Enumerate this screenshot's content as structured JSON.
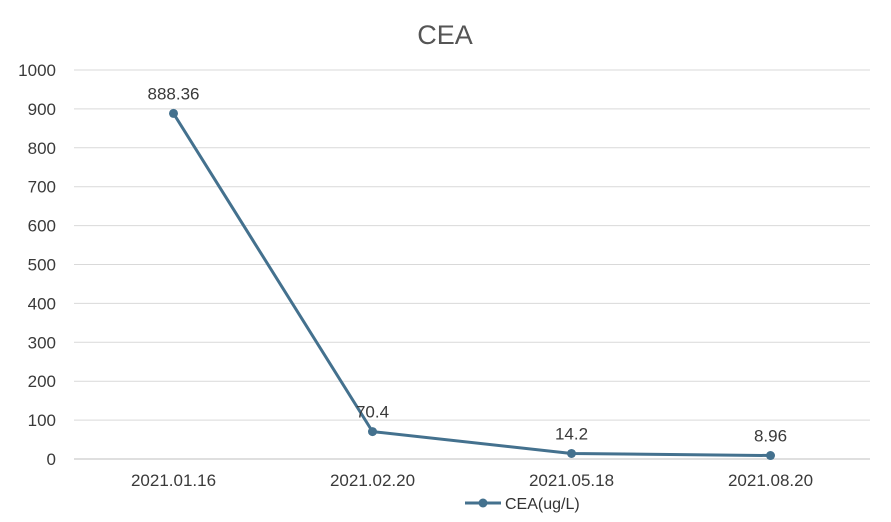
{
  "chart_data": {
    "type": "line",
    "title": "CEA",
    "xlabel": "",
    "ylabel": "",
    "categories": [
      "2021.01.16",
      "2021.02.20",
      "2021.05.18",
      "2021.08.20"
    ],
    "series": [
      {
        "name": "CEA(ug/L)",
        "values": [
          888.36,
          70.4,
          14.2,
          8.96
        ],
        "labels": [
          "888.36",
          "70.4",
          "14.2",
          "8.96"
        ],
        "color": "#44718e",
        "marker": "circle"
      }
    ],
    "ylim": [
      0,
      1000
    ],
    "yticks": [
      "0",
      "100",
      "200",
      "300",
      "400",
      "500",
      "600",
      "700",
      "800",
      "900",
      "1000"
    ],
    "grid": "horizontal",
    "legend_position": "bottom",
    "colors": {
      "grid": "#d9d9d9",
      "axis": "#bfbfbf",
      "series": "#44718e"
    }
  }
}
